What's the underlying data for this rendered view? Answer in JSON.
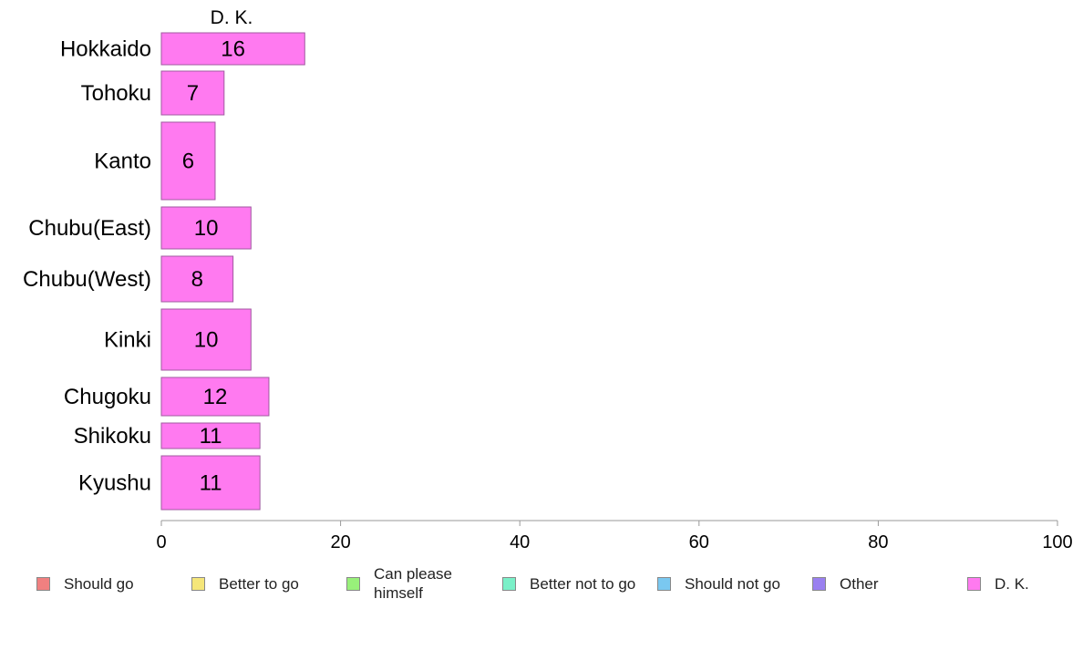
{
  "chart_data": {
    "type": "bar",
    "orientation": "horizontal",
    "stacked": true,
    "column_header": "D. K.",
    "categories": [
      "Hokkaido",
      "Tohoku",
      "Kanto",
      "Chubu(East)",
      "Chubu(West)",
      "Kinki",
      "Chugoku",
      "Shikoku",
      "Kyushu"
    ],
    "series": [
      {
        "name": "Should go",
        "color": "#f08080",
        "values": [
          null,
          null,
          null,
          null,
          null,
          null,
          null,
          null,
          null
        ]
      },
      {
        "name": "Better to go",
        "color": "#f5e67a",
        "values": [
          null,
          null,
          null,
          null,
          null,
          null,
          null,
          null,
          null
        ]
      },
      {
        "name": "Can please himself",
        "color": "#98f07a",
        "values": [
          null,
          null,
          null,
          null,
          null,
          null,
          null,
          null,
          null
        ]
      },
      {
        "name": "Better not to go",
        "color": "#7af0c8",
        "values": [
          null,
          null,
          null,
          null,
          null,
          null,
          null,
          null,
          null
        ]
      },
      {
        "name": "Should not go",
        "color": "#7ac8f0",
        "values": [
          null,
          null,
          null,
          null,
          null,
          null,
          null,
          null,
          null
        ]
      },
      {
        "name": "Other",
        "color": "#9a80f0",
        "values": [
          null,
          null,
          null,
          null,
          null,
          null,
          null,
          null,
          null
        ]
      },
      {
        "name": "D. K.",
        "color": "#ff7af0",
        "values": [
          16,
          7,
          6,
          10,
          8,
          10,
          12,
          11,
          11
        ]
      }
    ],
    "xlim": [
      0,
      100
    ],
    "xticks": [
      0,
      20,
      40,
      60,
      80,
      100
    ],
    "legend_position": "bottom",
    "grid": false,
    "xlabel": "",
    "ylabel": ""
  }
}
